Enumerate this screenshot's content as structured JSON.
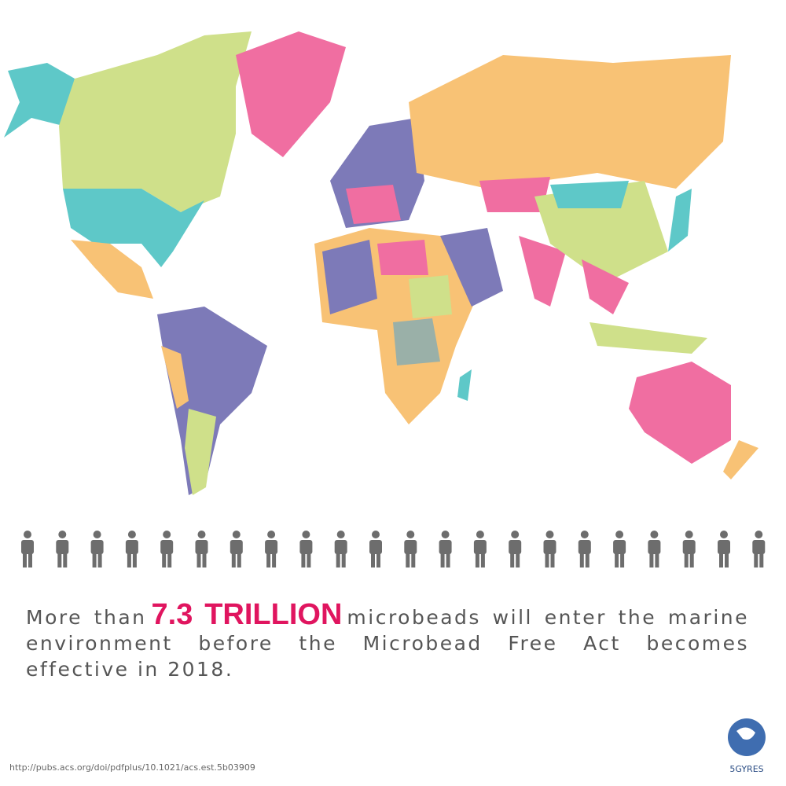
{
  "statement": {
    "lead": "More than",
    "highlight": "7.3 TRILLION",
    "rest": "microbeads will enter the marine environment before the Microbead Free Act becomes effective in 2018."
  },
  "source": "http://pubs.acs.org/doi/pdfplus/10.1021/acs.est.5b03909",
  "logo": "5GYRES"
}
